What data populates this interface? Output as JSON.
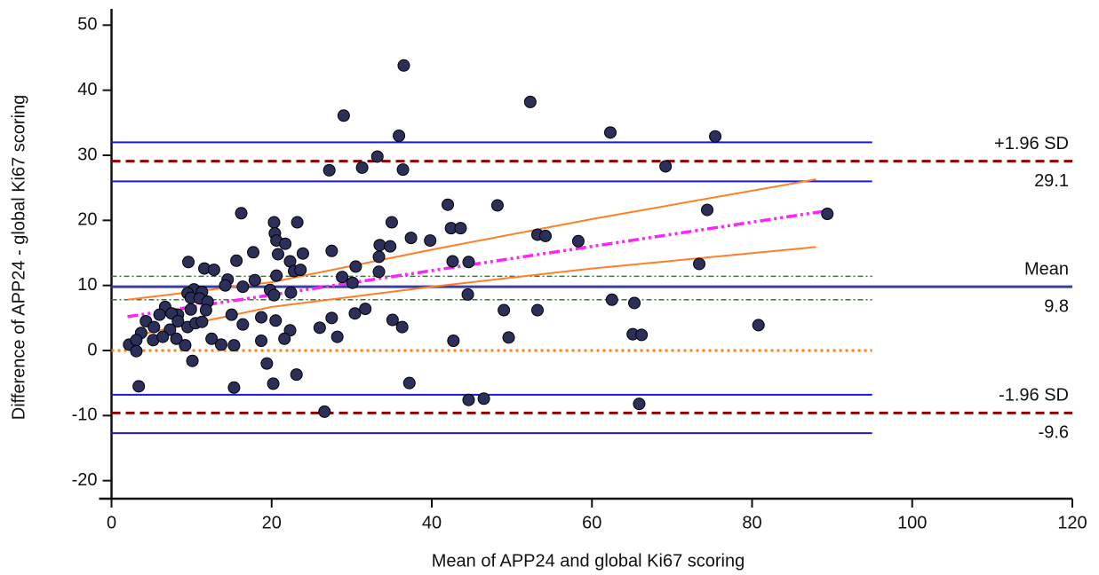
{
  "chart_data": {
    "type": "scatter",
    "xlabel": "Mean of APP24 and global Ki67 scoring",
    "ylabel": "Difference of APP24 - global Ki67 scoring",
    "xlim": [
      -1.5,
      120
    ],
    "ylim": [
      -22.5,
      52.5
    ],
    "xticks": [
      0,
      20,
      40,
      60,
      80,
      100,
      120
    ],
    "yticks": [
      -20,
      -10,
      0,
      10,
      20,
      30,
      40,
      50
    ],
    "hline_xlim": [
      0,
      95
    ],
    "hlines": [
      {
        "value": 32.0,
        "color": "#1a1adb",
        "dash": "none",
        "width": 2
      },
      {
        "value": 26.0,
        "color": "#1a1adb",
        "dash": "none",
        "width": 2
      },
      {
        "value": 11.4,
        "color": "#2e7d2e",
        "dash": "6 3 2 3",
        "width": 1.5
      },
      {
        "value": 7.8,
        "color": "#2e7d2e",
        "dash": "6 3 2 3",
        "width": 1.5
      },
      {
        "value": -6.8,
        "color": "#1a1adb",
        "dash": "none",
        "width": 2
      },
      {
        "value": -12.7,
        "color": "#1a1adb",
        "dash": "none",
        "width": 2
      },
      {
        "value": 0,
        "color": "#ff7f1a",
        "dash": "3 4",
        "width": 3
      }
    ],
    "reference_lines": [
      {
        "label": "+1.96 SD",
        "value": 29.1,
        "color": "#8b0000",
        "dash": "10 6",
        "width": 3
      },
      {
        "label": "Mean",
        "value": 9.8,
        "color": "#3a3f9a",
        "dash": "none",
        "width": 3
      },
      {
        "label": "-1.96 SD",
        "value": -9.6,
        "color": "#8b0000",
        "dash": "10 6",
        "width": 3
      }
    ],
    "curves": [
      {
        "x": [
          2,
          89
        ],
        "y": [
          5.2,
          21.4
        ],
        "color": "#ff22ff",
        "dash": "12 4 3 4 3 4",
        "width": 3.5
      },
      {
        "x": [
          2,
          20,
          40,
          60,
          88
        ],
        "y": [
          7.8,
          10.5,
          15.5,
          20.2,
          26.3
        ],
        "color": "#ff7f27",
        "dash": "none",
        "width": 2
      },
      {
        "x": [
          3,
          20,
          40,
          60,
          88
        ],
        "y": [
          2.3,
          6.7,
          9.8,
          12.6,
          15.9
        ],
        "color": "#ff7f27",
        "dash": "none",
        "width": 2
      }
    ],
    "points": {
      "color": "#2b2f5a",
      "x": [
        36.5,
        52.3,
        29,
        62.3,
        75.4,
        35.9,
        33.2,
        31.3,
        36.4,
        27.2,
        69.2,
        16.2,
        89.4,
        74.4,
        42,
        48.2,
        20.3,
        23.2,
        35,
        42.4,
        43.6,
        20.4,
        20.6,
        53.2,
        54.2,
        37.4,
        39.8,
        58.3,
        21.7,
        33.5,
        34.8,
        27.5,
        17.7,
        20.8,
        23.9,
        33.4,
        15.6,
        22.3,
        42.6,
        44.6,
        73.4,
        9.6,
        30.5,
        11.6,
        12.8,
        22.8,
        23.6,
        33.4,
        20.6,
        28.8,
        14.5,
        17.9,
        14.2,
        16.4,
        30.1,
        19.8,
        10.3,
        11.3,
        9.5,
        22.4,
        44.5,
        20.3,
        9.9,
        11,
        12,
        62.5,
        65.3,
        6.7,
        8.3,
        9.9,
        11.8,
        15,
        18.7,
        20.5,
        27.5,
        30.4,
        31.7,
        35.1,
        49,
        53.2,
        6,
        7.5,
        4.3,
        5.3,
        7.3,
        8.3,
        9.5,
        10.5,
        11.3,
        16.4,
        22.3,
        26,
        36.3,
        3.7,
        2.2,
        3.1,
        5.2,
        6.4,
        8.1,
        9.2,
        12.5,
        13.7,
        15.3,
        18.7,
        21.6,
        28.2,
        42.7,
        49.6,
        65.1,
        66.2,
        80.8,
        3.1,
        10.1,
        19.4,
        3.4,
        15.3,
        20.2,
        23.1,
        37.2,
        26.6,
        44.6,
        46.5,
        65.9
      ],
      "y": [
        43.8,
        38.2,
        36.1,
        33.5,
        32.9,
        33,
        29.8,
        28.1,
        27.8,
        27.7,
        28.3,
        21.1,
        21,
        21.6,
        22.4,
        22.3,
        19.7,
        19.7,
        19.7,
        18.8,
        18.8,
        18,
        16.9,
        17.8,
        17.6,
        17.3,
        16.9,
        16.8,
        16.4,
        16.2,
        16,
        15.3,
        15.1,
        14.8,
        14.9,
        14.4,
        13.8,
        13.7,
        13.7,
        13.6,
        13.3,
        13.6,
        12.9,
        12.6,
        12.4,
        12.2,
        12.4,
        12.1,
        11.5,
        11.3,
        10.9,
        10.8,
        10,
        9.8,
        10.4,
        9.3,
        9.4,
        9,
        8.8,
        8.9,
        8.6,
        8.5,
        8.1,
        8,
        7.5,
        7.8,
        7.3,
        6.7,
        5.5,
        6.3,
        6.2,
        5.5,
        5.1,
        4.6,
        5,
        5.7,
        6.4,
        4.7,
        6.2,
        6.2,
        5.5,
        5.7,
        4.5,
        3.6,
        3.2,
        4.5,
        3.6,
        4.2,
        4.4,
        4,
        3.1,
        3.5,
        3.6,
        2.7,
        0.9,
        1.6,
        1.6,
        2.1,
        1.8,
        0.8,
        1.8,
        0.9,
        0.8,
        1.5,
        1.8,
        2.1,
        1.5,
        2,
        2.5,
        2.4,
        3.9,
        -0.1,
        -1.6,
        -2,
        -5.5,
        -5.7,
        -5.1,
        -3.7,
        -5,
        -9.4,
        -7.6,
        -7.4,
        -8.2
      ]
    }
  }
}
